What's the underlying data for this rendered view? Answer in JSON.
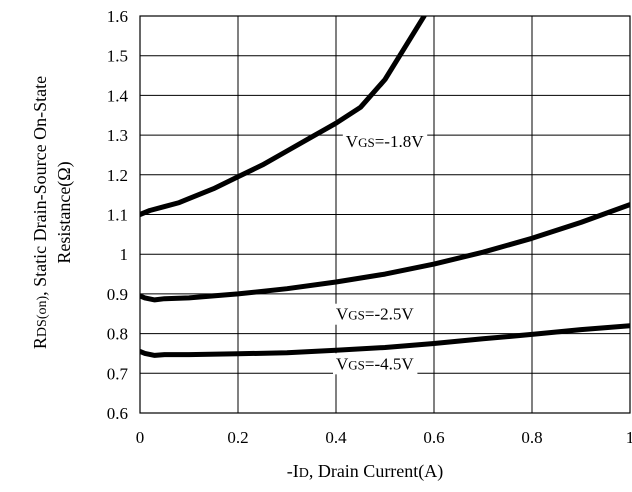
{
  "chart_data": {
    "type": "line",
    "title": "",
    "xlabel": {
      "parts": [
        {
          "text": "-I",
          "size": "normal"
        },
        {
          "text": "D",
          "size": "small"
        },
        {
          "text": ", Drain Current(A)",
          "size": "normal"
        }
      ]
    },
    "ylabel": {
      "line1": [
        {
          "text": "R",
          "size": "normal"
        },
        {
          "text": "DS(on)",
          "size": "small"
        },
        {
          "text": ", Static Drain-Source On-State",
          "size": "normal"
        }
      ],
      "line2": [
        {
          "text": "Resistance(Ω)",
          "size": "normal"
        }
      ]
    },
    "xlim": [
      0,
      1
    ],
    "ylim": [
      0.6,
      1.6
    ],
    "x_ticks": [
      0,
      0.2,
      0.4,
      0.6,
      0.8,
      1
    ],
    "x_tick_labels": [
      "0",
      "0.2",
      "0.4",
      "0.6",
      "0.8",
      "1"
    ],
    "y_ticks": [
      0.6,
      0.7,
      0.8,
      0.9,
      1.0,
      1.1,
      1.2,
      1.3,
      1.4,
      1.5,
      1.6
    ],
    "y_tick_labels": [
      "0.6",
      "0.7",
      "0.8",
      "0.9",
      "1",
      "1.1",
      "1.2",
      "1.3",
      "1.4",
      "1.5",
      "1.6"
    ],
    "grid": true,
    "legend": "none",
    "series": [
      {
        "name": "VGS=-1.8V",
        "label_parts": [
          {
            "text": "V",
            "size": "normal"
          },
          {
            "text": "GS",
            "size": "small"
          },
          {
            "text": "=-1.8V",
            "size": "normal"
          }
        ],
        "label_anchor": {
          "x": 0.42,
          "y": 1.27
        },
        "x": [
          0.0,
          0.02,
          0.05,
          0.08,
          0.1,
          0.15,
          0.2,
          0.25,
          0.3,
          0.35,
          0.4,
          0.45,
          0.5,
          0.54,
          0.58
        ],
        "y": [
          1.1,
          1.11,
          1.12,
          1.13,
          1.14,
          1.165,
          1.195,
          1.225,
          1.26,
          1.295,
          1.33,
          1.37,
          1.44,
          1.52,
          1.6
        ]
      },
      {
        "name": "VGS=-2.5V",
        "label_parts": [
          {
            "text": "V",
            "size": "normal"
          },
          {
            "text": "GS",
            "size": "small"
          },
          {
            "text": "=-2.5V",
            "size": "normal"
          }
        ],
        "label_anchor": {
          "x": 0.4,
          "y": 0.835
        },
        "x": [
          0.0,
          0.01,
          0.03,
          0.05,
          0.1,
          0.2,
          0.3,
          0.4,
          0.5,
          0.6,
          0.7,
          0.8,
          0.9,
          1.0
        ],
        "y": [
          0.895,
          0.89,
          0.885,
          0.888,
          0.89,
          0.9,
          0.913,
          0.93,
          0.95,
          0.975,
          1.005,
          1.04,
          1.08,
          1.125
        ]
      },
      {
        "name": "VGS=-4.5V",
        "label_parts": [
          {
            "text": "V",
            "size": "normal"
          },
          {
            "text": "GS",
            "size": "small"
          },
          {
            "text": "=-4.5V",
            "size": "normal"
          }
        ],
        "label_anchor": {
          "x": 0.4,
          "y": 0.71
        },
        "x": [
          0.0,
          0.01,
          0.03,
          0.05,
          0.1,
          0.2,
          0.3,
          0.4,
          0.5,
          0.6,
          0.7,
          0.8,
          0.9,
          1.0
        ],
        "y": [
          0.755,
          0.75,
          0.745,
          0.747,
          0.747,
          0.749,
          0.752,
          0.758,
          0.765,
          0.775,
          0.787,
          0.798,
          0.81,
          0.82
        ]
      }
    ]
  }
}
